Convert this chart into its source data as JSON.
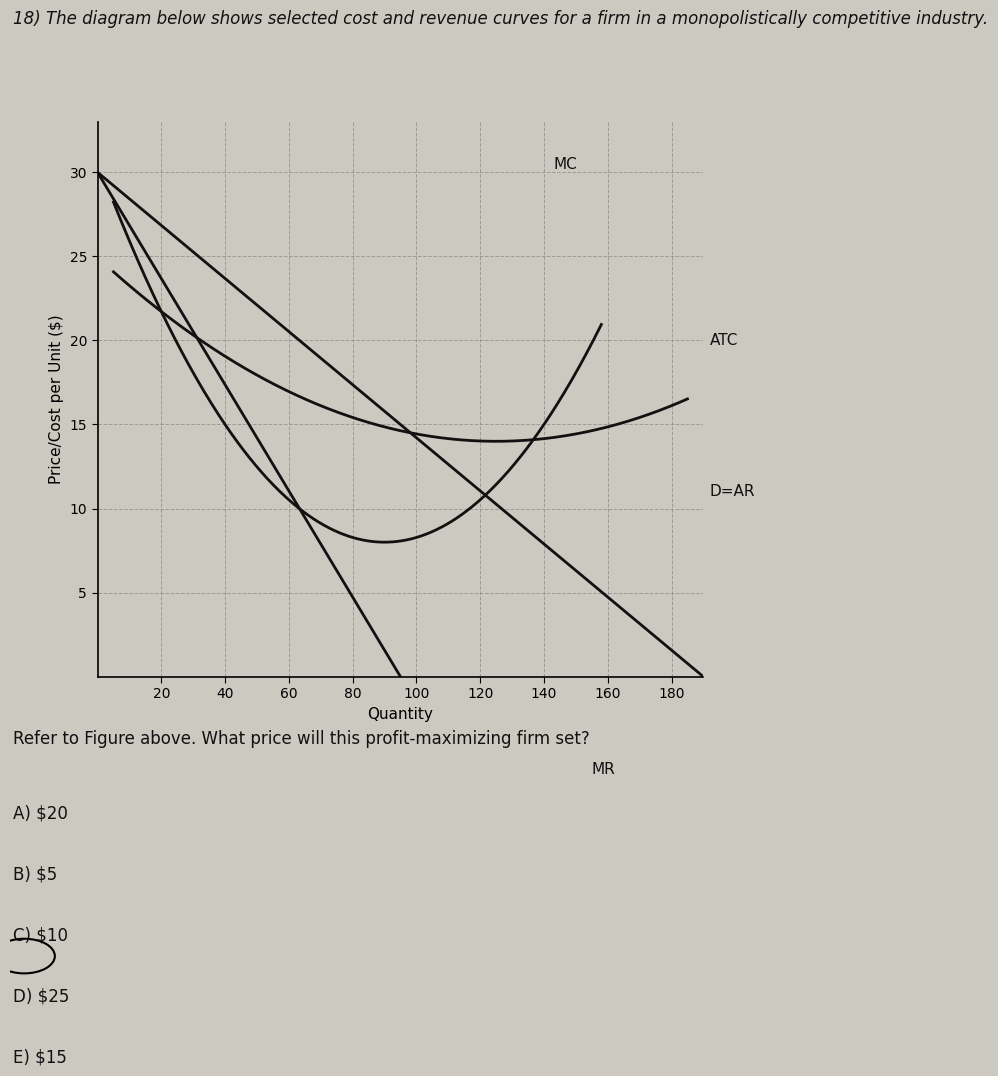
{
  "title": "18) The diagram below shows selected cost and revenue curves for a firm in a monopolistically competitive industry.",
  "xlabel": "Quantity",
  "ylabel": "Price/Cost per Unit ($)",
  "xlim": [
    0,
    190
  ],
  "ylim": [
    0,
    33
  ],
  "xticks": [
    20,
    40,
    60,
    80,
    100,
    120,
    140,
    160,
    180
  ],
  "yticks": [
    5,
    10,
    15,
    20,
    25,
    30
  ],
  "bg_color": "#ccc9c0",
  "chart_bg": "#ccc9c0",
  "question_text": "Refer to Figure above. What price will this profit-maximizing firm set?",
  "answers": [
    "A) $20",
    "B) $5",
    "C) $10",
    "D) $25",
    "E) $15"
  ],
  "correct_answer_index": 2,
  "curve_color": "#111111",
  "MC_label": "MC",
  "ATC_label": "ATC",
  "DAR_label": "D=AR",
  "MR_label": "MR",
  "grid_color": "#888888",
  "grid_style": "--"
}
